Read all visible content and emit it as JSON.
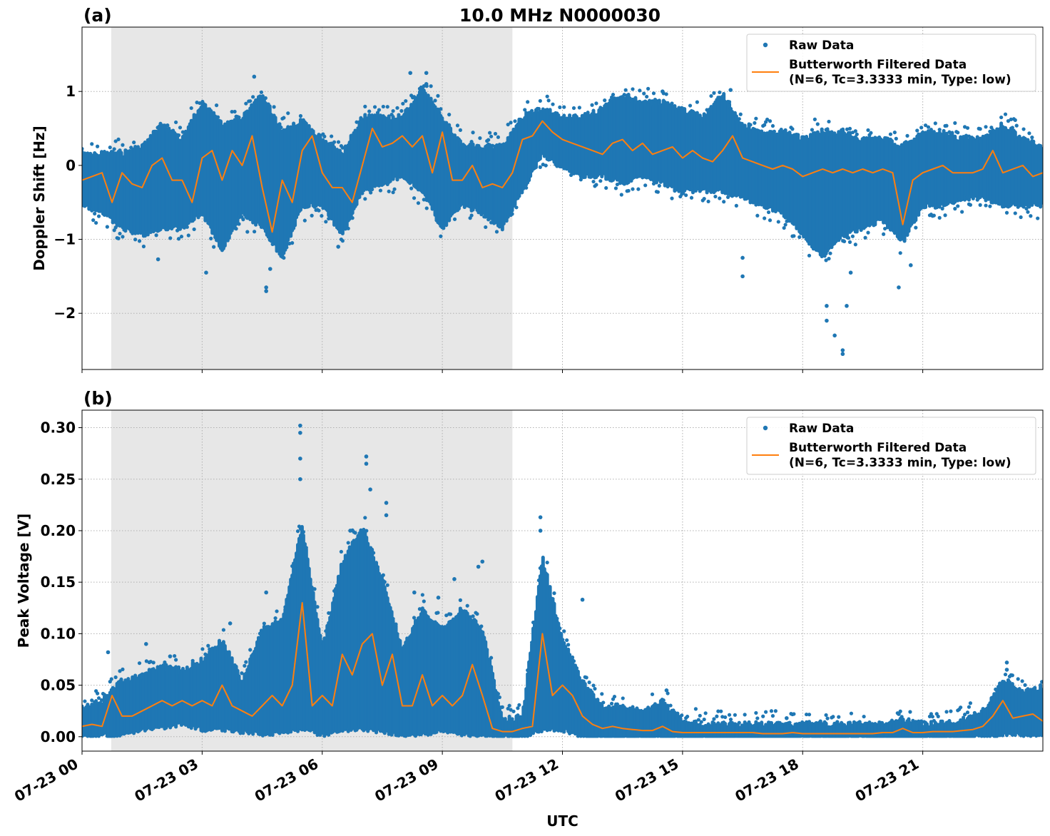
{
  "title": "10.0 MHz N0000030",
  "colors": {
    "raw": "#1f77b4",
    "filtered": "#ff7f0e",
    "shade": "#e7e7e7"
  },
  "chart_data": [
    {
      "panel_label": "(a)",
      "type": "scatter",
      "ylabel": "Doppler Shift [Hz]",
      "xlabel": "",
      "xlim_hours_utc": [
        0,
        24
      ],
      "ylim": [
        -2.76,
        1.87
      ],
      "yticks": [
        -2,
        -1,
        0,
        1
      ],
      "ytick_labels": [
        "−2",
        "−1",
        "0",
        "1"
      ],
      "grid": true,
      "legend_position": "top-right",
      "shaded_interval_hours_utc": [
        0.73,
        10.75
      ],
      "raw_data": {
        "name": "Raw Data",
        "x_hours": [
          0,
          0.5,
          1,
          1.5,
          2,
          2.5,
          3,
          3.5,
          4,
          4.5,
          5,
          5.5,
          6,
          6.5,
          7,
          7.5,
          8,
          8.5,
          9,
          9.5,
          10,
          10.5,
          11,
          11.5,
          12,
          12.5,
          13,
          13.5,
          14,
          14.5,
          15,
          15.5,
          16,
          16.5,
          17,
          17.5,
          18,
          18.5,
          19,
          19.5,
          20,
          20.5,
          21,
          21.5,
          22,
          22.5,
          23,
          23.5,
          24
        ],
        "low": [
          -0.5,
          -0.6,
          -0.8,
          -0.9,
          -0.8,
          -0.8,
          -0.6,
          -1.1,
          -0.6,
          -0.8,
          -1.2,
          -0.5,
          -0.5,
          -0.9,
          -0.3,
          -0.2,
          -0.1,
          -0.3,
          -0.8,
          -0.5,
          -0.6,
          -0.8,
          -0.3,
          0.2,
          0.0,
          -0.1,
          -0.1,
          -0.2,
          -0.1,
          -0.2,
          -0.3,
          -0.3,
          -0.3,
          -0.4,
          -0.5,
          -0.6,
          -0.9,
          -1.2,
          -0.9,
          -0.8,
          -0.7,
          -1.0,
          -0.5,
          -0.5,
          -0.4,
          -0.4,
          -0.5,
          -0.5,
          -0.5
        ],
        "high": [
          0.1,
          0.1,
          0.1,
          0.2,
          0.5,
          0.3,
          0.8,
          0.5,
          0.6,
          0.9,
          0.4,
          0.55,
          0.3,
          0.1,
          0.6,
          0.6,
          0.6,
          1.0,
          0.6,
          0.2,
          0.2,
          0.2,
          0.6,
          0.7,
          0.6,
          0.6,
          0.7,
          0.9,
          0.8,
          0.8,
          0.7,
          0.6,
          0.9,
          0.5,
          0.4,
          0.4,
          0.3,
          0.4,
          0.4,
          0.3,
          0.3,
          0.2,
          0.4,
          0.4,
          0.3,
          0.3,
          0.5,
          0.3,
          0.2
        ],
        "outliers": [
          [
            1.9,
            -1.27
          ],
          [
            3.1,
            -1.45
          ],
          [
            4.3,
            1.2
          ],
          [
            4.6,
            -1.65
          ],
          [
            4.6,
            -1.7
          ],
          [
            4.7,
            -1.4
          ],
          [
            6.4,
            -1.1
          ],
          [
            8.2,
            1.25
          ],
          [
            8.6,
            1.25
          ],
          [
            8.6,
            1.1
          ],
          [
            14.5,
            1.0
          ],
          [
            16.2,
            1.02
          ],
          [
            16.5,
            -1.5
          ],
          [
            16.5,
            -1.25
          ],
          [
            18.6,
            -2.1
          ],
          [
            18.6,
            -1.9
          ],
          [
            18.8,
            -2.3
          ],
          [
            19.0,
            -2.5
          ],
          [
            19.0,
            -2.55
          ],
          [
            19.1,
            -1.9
          ],
          [
            19.2,
            -1.45
          ],
          [
            20.4,
            -1.65
          ],
          [
            20.7,
            -1.35
          ]
        ]
      },
      "filtered_data": {
        "name": "Butterworth Filtered Data",
        "name_line2": "(N=6, Tc=3.3333 min, Type: low)",
        "x_hours": [
          0,
          0.25,
          0.5,
          0.75,
          1,
          1.25,
          1.5,
          1.75,
          2,
          2.25,
          2.5,
          2.75,
          3,
          3.25,
          3.5,
          3.75,
          4,
          4.25,
          4.5,
          4.75,
          5,
          5.25,
          5.5,
          5.75,
          6,
          6.25,
          6.5,
          6.75,
          7,
          7.25,
          7.5,
          7.75,
          8,
          8.25,
          8.5,
          8.75,
          9,
          9.25,
          9.5,
          9.75,
          10,
          10.25,
          10.5,
          10.75,
          11,
          11.25,
          11.5,
          11.75,
          12,
          12.25,
          12.5,
          12.75,
          13,
          13.25,
          13.5,
          13.75,
          14,
          14.25,
          14.5,
          14.75,
          15,
          15.25,
          15.5,
          15.75,
          16,
          16.25,
          16.5,
          16.75,
          17,
          17.25,
          17.5,
          17.75,
          18,
          18.25,
          18.5,
          18.75,
          19,
          19.25,
          19.5,
          19.75,
          20,
          20.25,
          20.5,
          20.75,
          21,
          21.25,
          21.5,
          21.75,
          22,
          22.25,
          22.5,
          22.75,
          23,
          23.25,
          23.5,
          23.75,
          24
        ],
        "values": [
          -0.2,
          -0.15,
          -0.1,
          -0.5,
          -0.1,
          -0.25,
          -0.3,
          0.0,
          0.1,
          -0.2,
          -0.2,
          -0.5,
          0.1,
          0.2,
          -0.2,
          0.2,
          0.0,
          0.4,
          -0.3,
          -0.9,
          -0.2,
          -0.5,
          0.2,
          0.4,
          -0.1,
          -0.3,
          -0.3,
          -0.5,
          0.0,
          0.5,
          0.25,
          0.3,
          0.4,
          0.25,
          0.4,
          -0.1,
          0.45,
          -0.2,
          -0.2,
          0.0,
          -0.3,
          -0.25,
          -0.3,
          -0.1,
          0.35,
          0.4,
          0.6,
          0.45,
          0.35,
          0.3,
          0.25,
          0.2,
          0.15,
          0.3,
          0.35,
          0.2,
          0.3,
          0.15,
          0.2,
          0.25,
          0.1,
          0.2,
          0.1,
          0.05,
          0.2,
          0.4,
          0.1,
          0.05,
          0.0,
          -0.05,
          0.0,
          -0.05,
          -0.15,
          -0.1,
          -0.05,
          -0.1,
          -0.05,
          -0.1,
          -0.05,
          -0.1,
          -0.05,
          -0.1,
          -0.8,
          -0.2,
          -0.1,
          -0.05,
          0.0,
          -0.1,
          -0.1,
          -0.1,
          -0.05,
          0.2,
          -0.1,
          -0.05,
          0.0,
          -0.15,
          -0.1
        ]
      }
    },
    {
      "panel_label": "(b)",
      "type": "scatter",
      "ylabel": "Peak Voltage [V]",
      "xlabel": "UTC",
      "xlim_hours_utc": [
        0,
        24
      ],
      "ylim": [
        -0.014,
        0.317
      ],
      "yticks": [
        0,
        0.05,
        0.1,
        0.15,
        0.2,
        0.25,
        0.3
      ],
      "ytick_labels": [
        "0.00",
        "0.05",
        "0.10",
        "0.15",
        "0.20",
        "0.25",
        "0.30"
      ],
      "xticks_hours": [
        0,
        3,
        6,
        9,
        12,
        15,
        18,
        21
      ],
      "xtick_labels": [
        "07-23 00",
        "07-23 03",
        "07-23 06",
        "07-23 09",
        "07-23 12",
        "07-23 15",
        "07-23 18",
        "07-23 21"
      ],
      "grid": true,
      "legend_position": "top-right",
      "shaded_interval_hours_utc": [
        0.73,
        10.75
      ],
      "raw_data": {
        "name": "Raw Data",
        "x_hours": [
          0,
          0.5,
          1,
          1.5,
          2,
          2.5,
          3,
          3.5,
          4,
          4.5,
          5,
          5.5,
          6,
          6.5,
          7,
          7.5,
          8,
          8.5,
          9,
          9.5,
          10,
          10.5,
          11,
          11.5,
          12,
          12.5,
          13,
          13.5,
          14,
          14.5,
          15,
          15.5,
          16,
          16.5,
          17,
          17.5,
          18,
          18.5,
          19,
          19.5,
          20,
          20.5,
          21,
          21.5,
          22,
          22.5,
          23,
          23.5,
          24
        ],
        "low": [
          0.003,
          0.004,
          0.005,
          0.01,
          0.012,
          0.015,
          0.01,
          0.01,
          0.008,
          0.005,
          0.008,
          0.01,
          0.005,
          0.01,
          0.01,
          0.008,
          0.005,
          0.005,
          0.01,
          0.005,
          0.005,
          0.002,
          0.002,
          0.01,
          0.01,
          0.003,
          0.001,
          0.001,
          0.001,
          0.001,
          0.001,
          0.001,
          0.001,
          0.001,
          0.001,
          0.001,
          0.001,
          0.001,
          0.001,
          0.001,
          0.001,
          0.001,
          0.001,
          0.001,
          0.001,
          0.003,
          0.005,
          0.005,
          0.005
        ],
        "high": [
          0.025,
          0.03,
          0.05,
          0.055,
          0.065,
          0.06,
          0.07,
          0.09,
          0.05,
          0.1,
          0.11,
          0.2,
          0.08,
          0.165,
          0.2,
          0.15,
          0.08,
          0.12,
          0.1,
          0.12,
          0.1,
          0.012,
          0.015,
          0.17,
          0.09,
          0.05,
          0.025,
          0.025,
          0.02,
          0.03,
          0.01,
          0.008,
          0.008,
          0.008,
          0.008,
          0.008,
          0.008,
          0.008,
          0.008,
          0.008,
          0.008,
          0.012,
          0.008,
          0.01,
          0.012,
          0.02,
          0.05,
          0.04,
          0.045
        ],
        "outliers": [
          [
            0.65,
            0.082
          ],
          [
            1.6,
            0.09
          ],
          [
            2.2,
            0.078
          ],
          [
            3.7,
            0.11
          ],
          [
            4.6,
            0.14
          ],
          [
            5.45,
            0.302
          ],
          [
            5.45,
            0.295
          ],
          [
            5.45,
            0.27
          ],
          [
            5.45,
            0.25
          ],
          [
            6.7,
            0.2
          ],
          [
            7.1,
            0.272
          ],
          [
            7.1,
            0.265
          ],
          [
            7.2,
            0.24
          ],
          [
            7.6,
            0.227
          ],
          [
            7.6,
            0.215
          ],
          [
            8.3,
            0.14
          ],
          [
            8.9,
            0.135
          ],
          [
            9.3,
            0.153
          ],
          [
            9.9,
            0.165
          ],
          [
            10.0,
            0.17
          ],
          [
            11.45,
            0.213
          ],
          [
            11.45,
            0.2
          ],
          [
            12.5,
            0.133
          ],
          [
            14.6,
            0.045
          ],
          [
            17.6,
            0.018
          ],
          [
            20.4,
            0.022
          ],
          [
            23.1,
            0.072
          ],
          [
            23.1,
            0.065
          ]
        ]
      },
      "filtered_data": {
        "name": "Butterworth Filtered Data",
        "name_line2": "(N=6, Tc=3.3333 min, Type: low)",
        "x_hours": [
          0,
          0.25,
          0.5,
          0.75,
          1,
          1.25,
          1.5,
          1.75,
          2,
          2.25,
          2.5,
          2.75,
          3,
          3.25,
          3.5,
          3.75,
          4,
          4.25,
          4.5,
          4.75,
          5,
          5.25,
          5.5,
          5.75,
          6,
          6.25,
          6.5,
          6.75,
          7,
          7.25,
          7.5,
          7.75,
          8,
          8.25,
          8.5,
          8.75,
          9,
          9.25,
          9.5,
          9.75,
          10,
          10.25,
          10.5,
          10.75,
          11,
          11.25,
          11.5,
          11.75,
          12,
          12.25,
          12.5,
          12.75,
          13,
          13.25,
          13.5,
          13.75,
          14,
          14.25,
          14.5,
          14.75,
          15,
          15.25,
          15.5,
          15.75,
          16,
          16.25,
          16.5,
          16.75,
          17,
          17.25,
          17.5,
          17.75,
          18,
          18.25,
          18.5,
          18.75,
          19,
          19.25,
          19.5,
          19.75,
          20,
          20.25,
          20.5,
          20.75,
          21,
          21.25,
          21.5,
          21.75,
          22,
          22.25,
          22.5,
          22.75,
          23,
          23.25,
          23.5,
          23.75,
          24
        ],
        "values": [
          0.01,
          0.012,
          0.01,
          0.04,
          0.02,
          0.02,
          0.025,
          0.03,
          0.035,
          0.03,
          0.035,
          0.03,
          0.035,
          0.03,
          0.05,
          0.03,
          0.025,
          0.02,
          0.03,
          0.04,
          0.03,
          0.05,
          0.13,
          0.03,
          0.04,
          0.03,
          0.08,
          0.06,
          0.09,
          0.1,
          0.05,
          0.08,
          0.03,
          0.03,
          0.06,
          0.03,
          0.04,
          0.03,
          0.04,
          0.07,
          0.04,
          0.008,
          0.005,
          0.005,
          0.008,
          0.01,
          0.1,
          0.04,
          0.05,
          0.04,
          0.02,
          0.012,
          0.008,
          0.01,
          0.008,
          0.007,
          0.006,
          0.006,
          0.01,
          0.005,
          0.004,
          0.004,
          0.004,
          0.004,
          0.004,
          0.004,
          0.004,
          0.004,
          0.003,
          0.003,
          0.003,
          0.004,
          0.003,
          0.003,
          0.003,
          0.003,
          0.003,
          0.003,
          0.003,
          0.003,
          0.004,
          0.004,
          0.008,
          0.004,
          0.004,
          0.005,
          0.005,
          0.005,
          0.006,
          0.007,
          0.01,
          0.02,
          0.035,
          0.018,
          0.02,
          0.022,
          0.015
        ]
      }
    }
  ]
}
